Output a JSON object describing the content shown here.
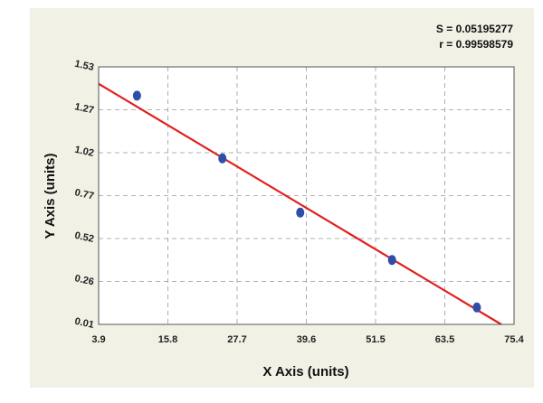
{
  "chart_data": {
    "type": "scatter",
    "xlabel": "X Axis (units)",
    "ylabel": "Y Axis (units)",
    "xlim": [
      3.9,
      75.4
    ],
    "ylim": [
      0.01,
      1.53
    ],
    "x_ticks": [
      "3.9",
      "15.8",
      "27.7",
      "39.6",
      "51.5",
      "63.5",
      "75.4"
    ],
    "y_ticks": [
      "0.01",
      "0.26",
      "0.52",
      "0.77",
      "1.02",
      "1.27",
      "1.53"
    ],
    "grid": true,
    "annotations": {
      "s_text": "S = 0.05195277",
      "r_text": "r = 0.99598579"
    },
    "series": [
      {
        "points": [
          {
            "x": 10.5,
            "y": 1.36
          },
          {
            "x": 25.2,
            "y": 0.99
          },
          {
            "x": 38.6,
            "y": 0.67
          },
          {
            "x": 54.4,
            "y": 0.39
          },
          {
            "x": 69.0,
            "y": 0.11
          }
        ]
      }
    ],
    "fit_line": {
      "x": [
        3.9,
        73.2
      ],
      "y": [
        1.43,
        0.01
      ]
    },
    "colors": {
      "points": "#2e4fa8",
      "fit_line": "#e02020",
      "background": "#f1f1e6",
      "plot_background": "#ffffff",
      "grid": "#999999"
    }
  }
}
